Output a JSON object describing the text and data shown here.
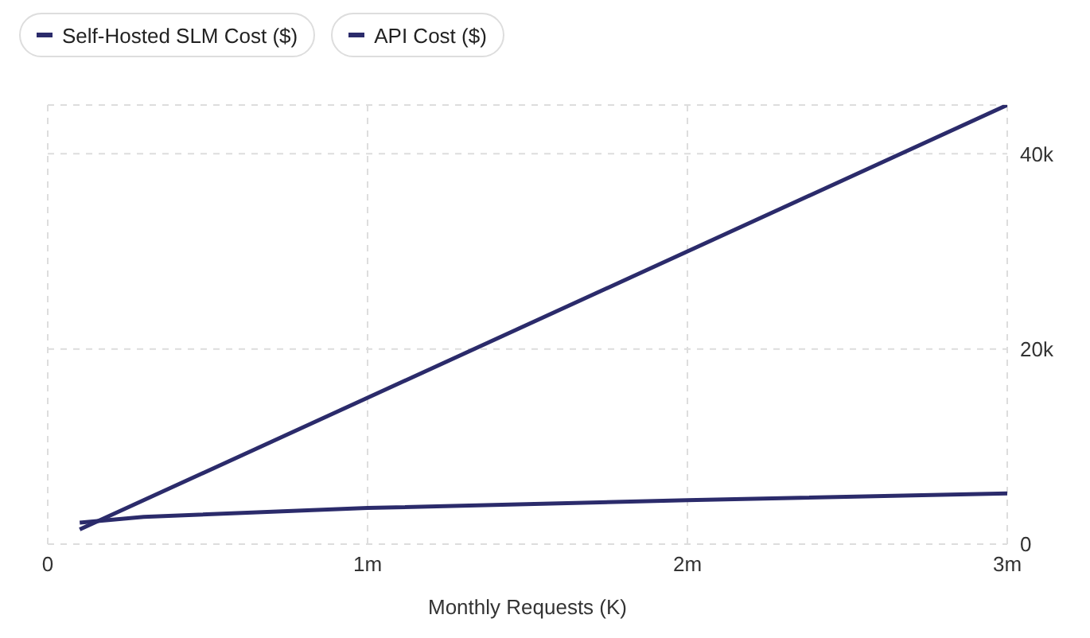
{
  "chart_data": {
    "type": "line",
    "xlabel": "Monthly Requests (K)",
    "xlim": [
      0,
      3000000
    ],
    "xticks": [
      0,
      {
        "value": 1000000,
        "label": "1m"
      },
      {
        "value": 2000000,
        "label": "2m"
      },
      {
        "value": 3000000,
        "label": "3m"
      }
    ],
    "ylim": [
      0,
      45000
    ],
    "yticks": [
      0,
      {
        "value": 20000,
        "label": "20k"
      },
      {
        "value": 40000,
        "label": "40k"
      }
    ],
    "grid": true,
    "legend": "top left",
    "marker": "none",
    "line_style": "solid",
    "series": [
      {
        "name": "Self-Hosted SLM Cost ($)",
        "color": "#2b2b6b",
        "x": [
          100000,
          300000,
          1000000,
          2000000,
          3000000
        ],
        "values": [
          2200,
          2800,
          3700,
          4500,
          5200
        ]
      },
      {
        "name": "API Cost ($)",
        "color": "#2b2b6b",
        "x": [
          100000,
          3000000
        ],
        "values": [
          1500,
          45000
        ]
      }
    ]
  }
}
